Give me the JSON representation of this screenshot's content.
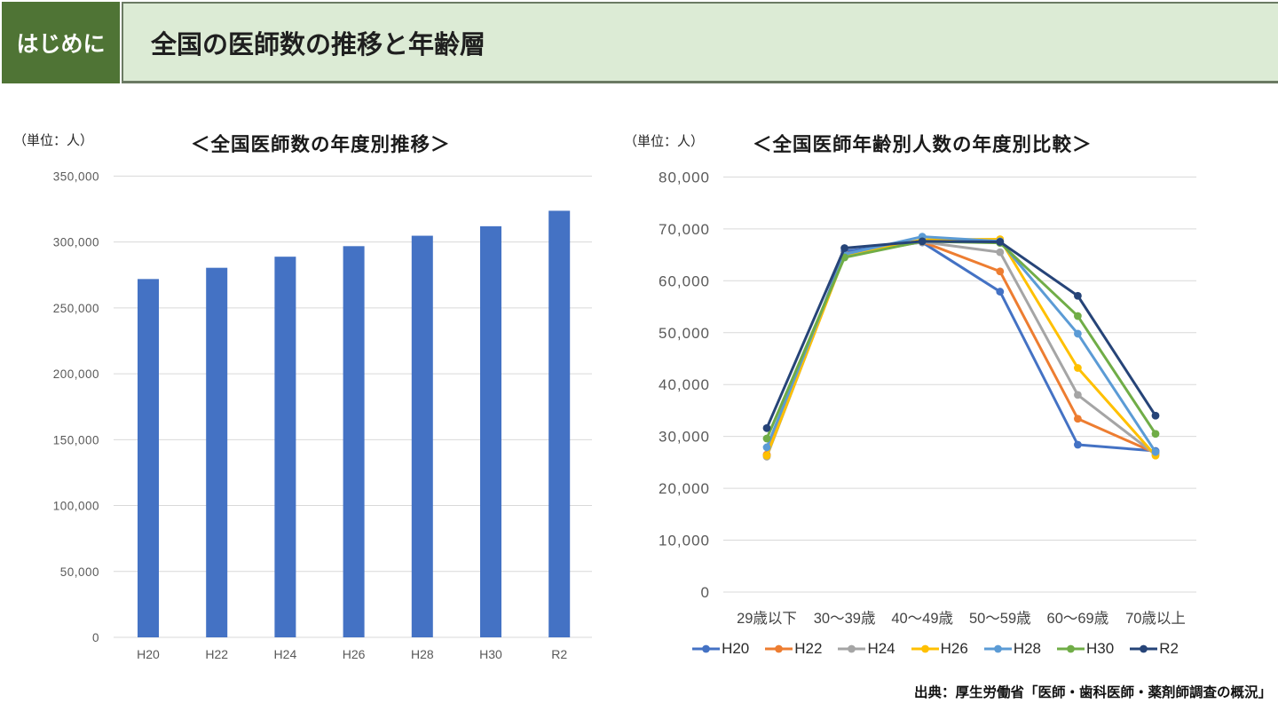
{
  "header": {
    "tab_label": "はじめに",
    "title": "全国の医師数の推移と年齢層"
  },
  "source_note": "出典：厚生労働省「医師・歯科医師・薬剤師調査の概況」",
  "colors": {
    "header_tab_bg": "#4f7435",
    "header_banner_bg": "#dcebd5",
    "bar": "#4472c4",
    "gridline": "#d9d9d9",
    "tick_label": "#595959",
    "category_label": "#444444"
  },
  "chart_data": [
    {
      "type": "bar",
      "title": "＜全国医師数の年度別推移＞",
      "unit_label": "（単位：人）",
      "categories": [
        "H20",
        "H22",
        "H24",
        "H26",
        "H28",
        "H30",
        "R2"
      ],
      "values": [
        271897,
        280431,
        288850,
        296845,
        304759,
        311963,
        323700
      ],
      "ylim": [
        0,
        350000
      ],
      "ytick_step": 50000,
      "grid": true,
      "bar_color": "#4472c4"
    },
    {
      "type": "line",
      "title": "＜全国医師年齢別人数の年度別比較＞",
      "unit_label": "（単位：人）",
      "categories": [
        "29歳以下",
        "30～39歳",
        "40～49歳",
        "50～59歳",
        "60～69歳",
        "70歳以上"
      ],
      "series": [
        {
          "name": "H20",
          "color": "#4472c4",
          "values": [
            26400,
            65700,
            67400,
            57900,
            28400,
            27200
          ]
        },
        {
          "name": "H22",
          "color": "#ed7d31",
          "values": [
            26500,
            65200,
            67500,
            61800,
            33400,
            26800
          ]
        },
        {
          "name": "H24",
          "color": "#a5a5a5",
          "values": [
            26100,
            64900,
            67500,
            65500,
            38000,
            26500
          ]
        },
        {
          "name": "H26",
          "color": "#ffc000",
          "values": [
            26300,
            64800,
            67900,
            68000,
            43200,
            26300
          ]
        },
        {
          "name": "H28",
          "color": "#5b9bd5",
          "values": [
            27900,
            65100,
            68500,
            67600,
            49800,
            27000
          ]
        },
        {
          "name": "H30",
          "color": "#70ad47",
          "values": [
            29600,
            64500,
            67600,
            67300,
            53200,
            30500
          ]
        },
        {
          "name": "R2",
          "color": "#264478",
          "values": [
            31600,
            66300,
            67600,
            67500,
            57100,
            34000
          ]
        }
      ],
      "ylim": [
        0,
        80000
      ],
      "ytick_step": 10000,
      "grid": true,
      "legend_position": "bottom"
    }
  ]
}
